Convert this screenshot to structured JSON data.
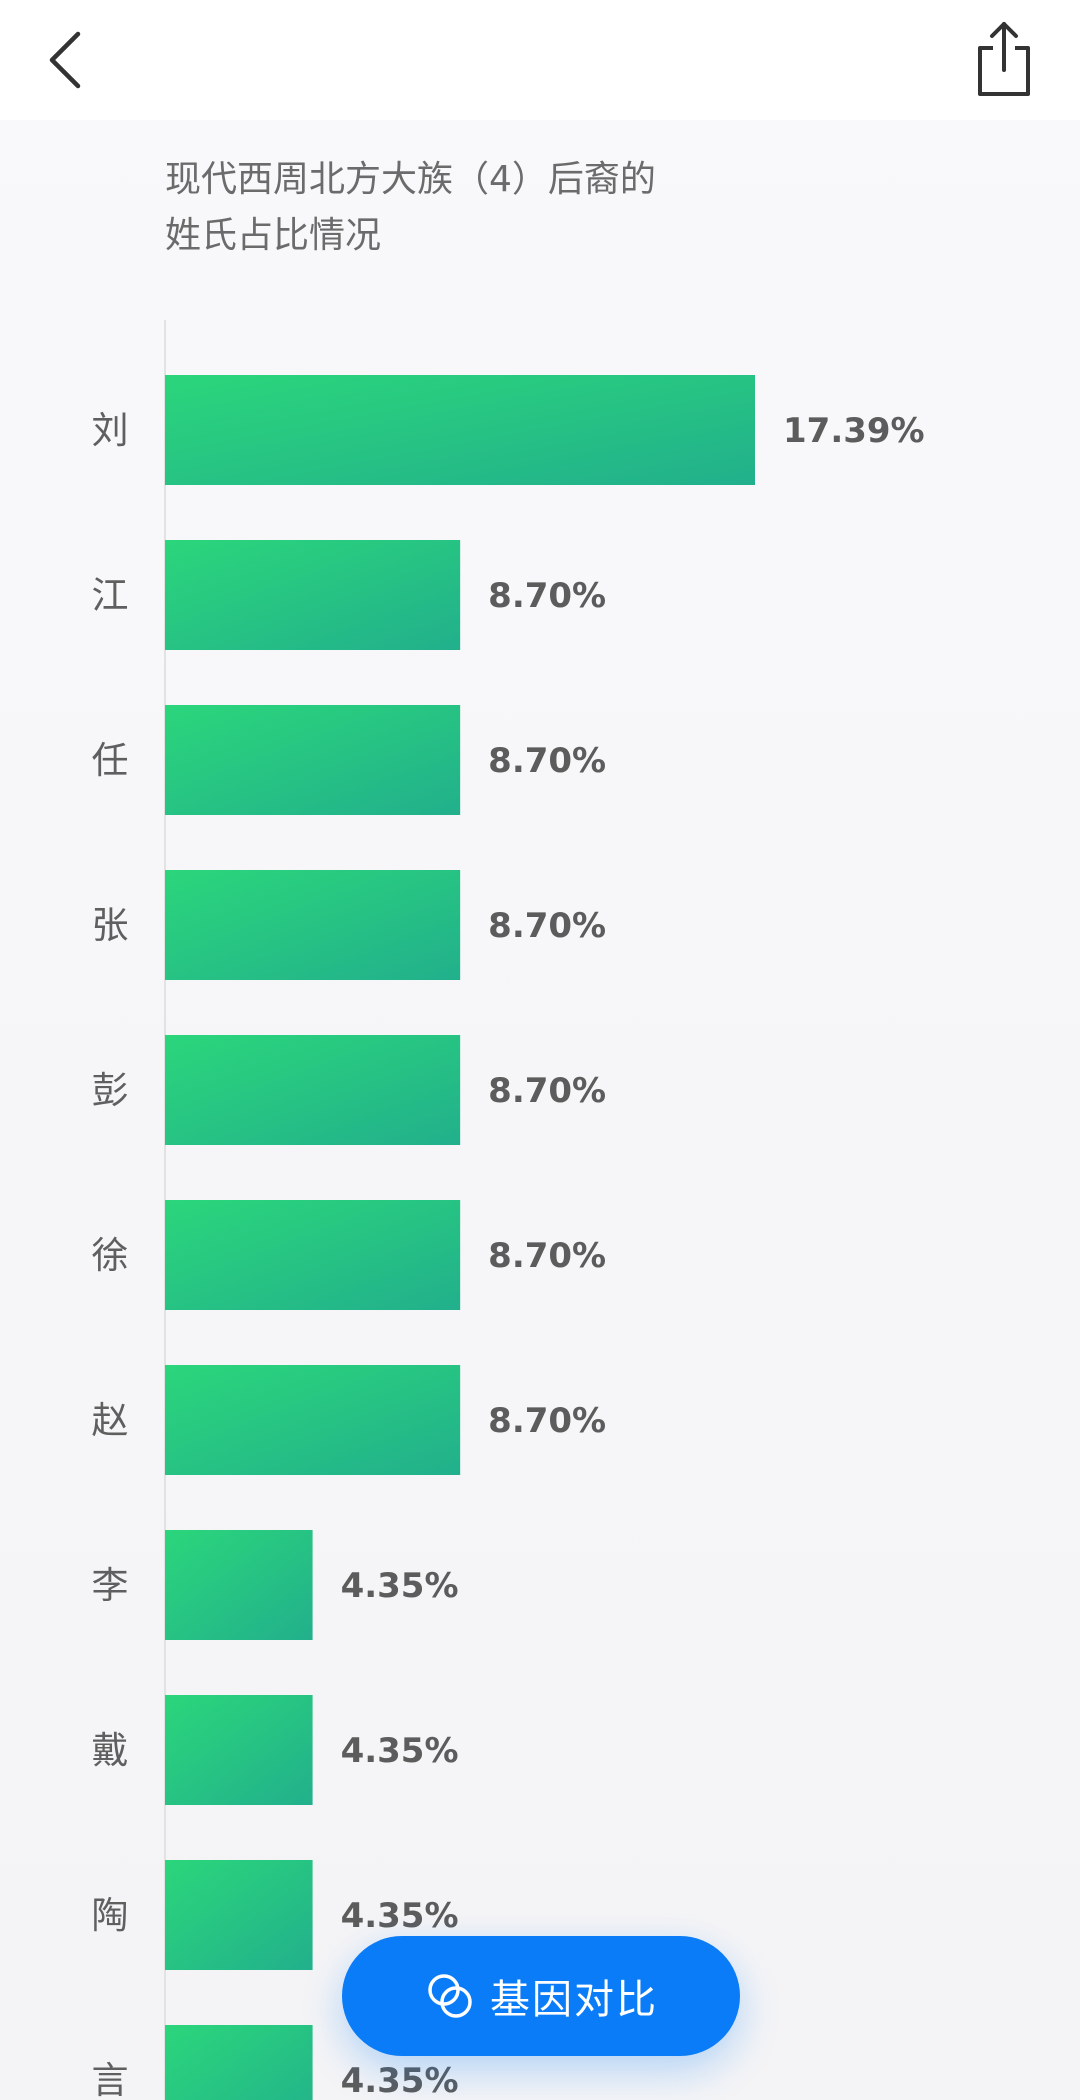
{
  "header": {
    "back_icon": "chevron-left-icon",
    "share_icon": "share-icon"
  },
  "chart_data": {
    "type": "bar",
    "orientation": "horizontal",
    "title_lines": [
      "现代西周北方大族（4）后裔的",
      "姓氏占比情况"
    ],
    "categories": [
      "刘",
      "江",
      "任",
      "张",
      "彭",
      "徐",
      "赵",
      "李",
      "戴",
      "陶",
      "言"
    ],
    "values": [
      17.39,
      8.7,
      8.7,
      8.7,
      8.7,
      8.7,
      8.7,
      4.35,
      4.35,
      4.35,
      4.35
    ],
    "value_labels": [
      "17.39%",
      "8.70%",
      "8.70%",
      "8.70%",
      "8.70%",
      "8.70%",
      "8.70%",
      "4.35%",
      "4.35%",
      "4.35%",
      "4.35%"
    ],
    "unit": "%",
    "xlim": [
      0,
      17.39
    ],
    "grid": false,
    "colors": {
      "bar_start": "#2bd67b",
      "bar_end": "#22b08c"
    }
  },
  "fab": {
    "label": "基因对比",
    "icon": "gene-compare-icon",
    "color": "#0a7cf8"
  }
}
